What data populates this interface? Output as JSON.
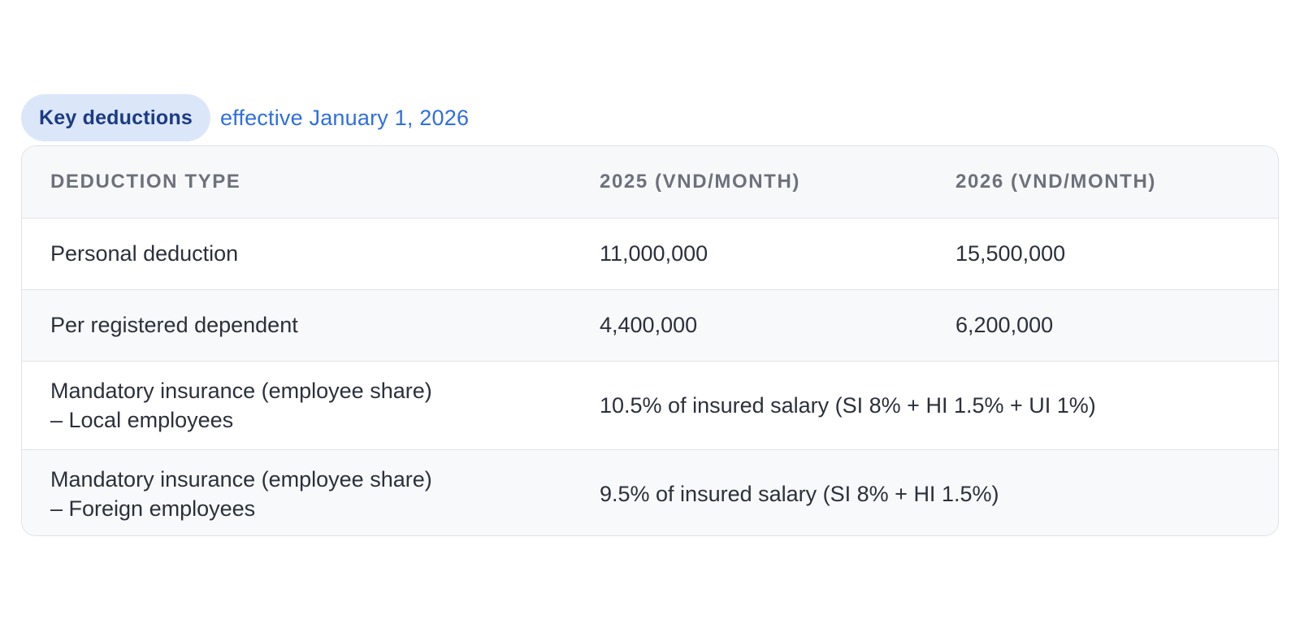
{
  "heading": {
    "badge": "Key deductions",
    "subtitle": "effective January 1, 2026"
  },
  "table": {
    "columns": [
      "Deduction type",
      "2025 (VND/month)",
      "2026 (VND/month)"
    ],
    "rows": [
      {
        "type_line1": "Personal deduction",
        "v2025": "11,000,000",
        "v2026": "15,500,000"
      },
      {
        "type_line1": "Per registered dependent",
        "v2025": "4,400,000",
        "v2026": "6,200,000"
      },
      {
        "type_line1": "Mandatory insurance (employee share)",
        "type_line2": "– Local employees",
        "value_both": "10.5% of insured salary (SI 8% + HI 1.5% + UI 1%)"
      },
      {
        "type_line1": "Mandatory insurance (employee share)",
        "type_line2": "– Foreign employees",
        "value_both": "9.5% of insured salary (SI 8% + HI 1.5%)"
      }
    ]
  },
  "colors": {
    "badge_bg": "#dbe7f9",
    "badge_text": "#1c3a85",
    "subtitle_text": "#2f6fe0"
  }
}
